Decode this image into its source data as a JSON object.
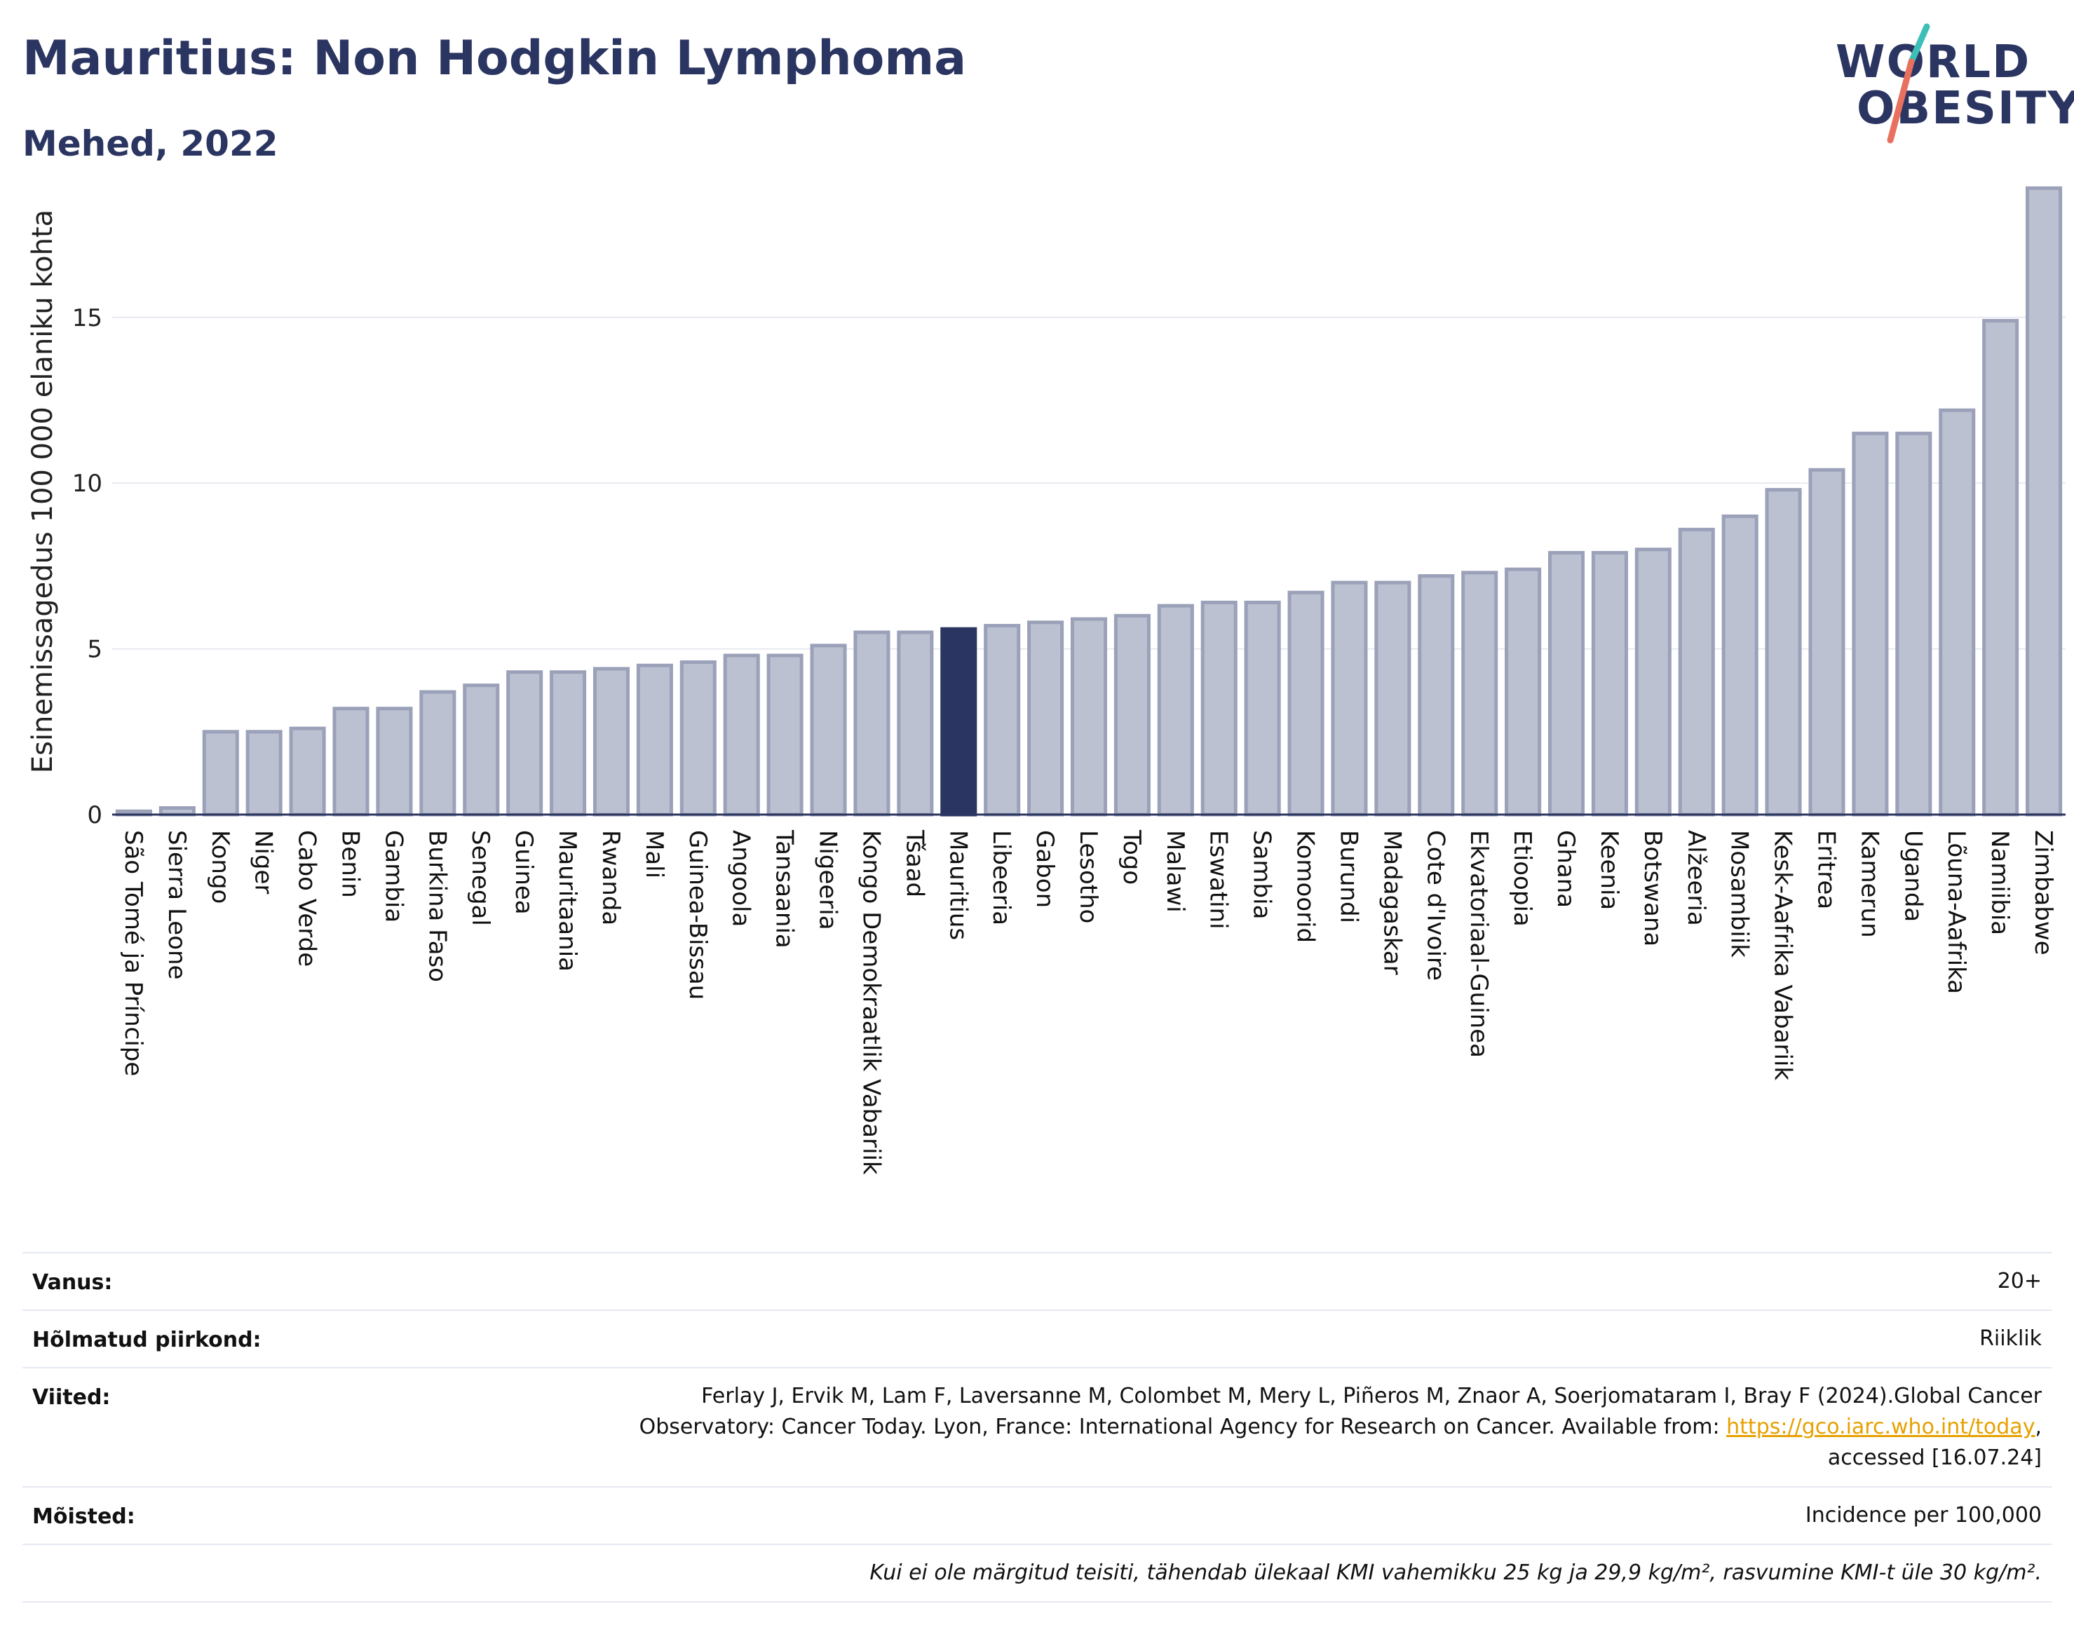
{
  "header": {
    "title": "Mauritius: Non Hodgkin Lymphoma",
    "subtitle": "Mehed, 2022"
  },
  "logo": {
    "line1": "WORLD",
    "line2": "OBESITY"
  },
  "colors": {
    "bar": "#bcc1d1",
    "bar_stroke": "#9aa1b8",
    "highlight": "#2b3561",
    "grid": "#e8eaf1",
    "axis": "#2b3561"
  },
  "chart_data": {
    "type": "bar",
    "ylabel": "Esinemissagedus 100 000 elaniku kohta",
    "ylim": [
      0,
      19.5
    ],
    "yticks": [
      0,
      5,
      10,
      15
    ],
    "grid": "horizontal",
    "highlight": "Mauritius",
    "categories": [
      "São Tomé ja Príncipe",
      "Sierra Leone",
      "Kongo",
      "Niger",
      "Cabo Verde",
      "Benin",
      "Gambia",
      "Burkina Faso",
      "Senegal",
      "Guinea",
      "Mauritaania",
      "Rwanda",
      "Mali",
      "Guinea-Bissau",
      "Angoola",
      "Tansaania",
      "Nigeeria",
      "Kongo Demokraatlik Vabariik",
      "Tšaad",
      "Mauritius",
      "Libeeria",
      "Gabon",
      "Lesotho",
      "Togo",
      "Malawi",
      "Eswatini",
      "Sambia",
      "Komoorid",
      "Burundi",
      "Madagaskar",
      "Cote d'Ivoire",
      "Ekvatoriaal-Guinea",
      "Etioopia",
      "Ghana",
      "Keenia",
      "Botswana",
      "Alžeeria",
      "Mosambiik",
      "Kesk-Aafrika Vabariik",
      "Eritrea",
      "Kamerun",
      "Uganda",
      "Lõuna-Aafrika",
      "Namiibia",
      "Zimbabwe"
    ],
    "values": [
      0.1,
      0.2,
      2.5,
      2.5,
      2.6,
      3.2,
      3.2,
      3.7,
      3.9,
      4.3,
      4.3,
      4.4,
      4.5,
      4.6,
      4.8,
      4.8,
      5.1,
      5.5,
      5.5,
      5.6,
      5.7,
      5.8,
      5.9,
      6.0,
      6.3,
      6.4,
      6.4,
      6.7,
      7.0,
      7.0,
      7.2,
      7.3,
      7.4,
      7.9,
      7.9,
      8.0,
      8.6,
      9.0,
      9.8,
      10.4,
      11.5,
      11.5,
      12.2,
      14.9,
      18.9
    ]
  },
  "meta": {
    "age_label": "Vanus:",
    "age_value": "20+",
    "region_label": "Hõlmatud piirkond:",
    "region_value": "Riiklik",
    "refs_label": "Viited:",
    "refs_line1": "Ferlay J, Ervik M, Lam F, Laversanne M, Colombet M, Mery L, Piñeros M, Znaor A, Soerjomataram I, Bray F (2024).Global Cancer",
    "refs_line2_pre": "Observatory: Cancer Today. Lyon, France: International Agency for Research on Cancer. Available from: ",
    "refs_link": "https://gco.iarc.who.int/today",
    "refs_line2_post": ",",
    "refs_line3": "accessed [16.07.24]",
    "defs_label": "Mõisted:",
    "defs_value": "Incidence per 100,000",
    "footnote": "Kui ei ole märgitud teisiti, tähendab ülekaal KMI vahemikku 25 kg ja 29,9 kg/m², rasvumine KMI-t üle 30 kg/m²."
  }
}
